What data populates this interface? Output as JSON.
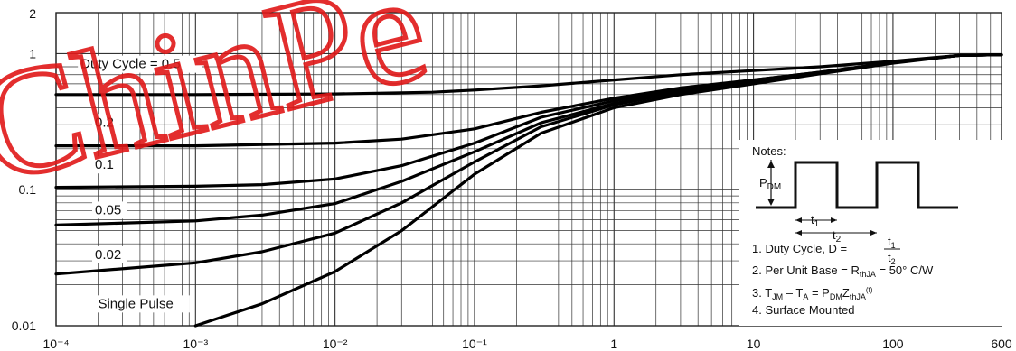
{
  "chart_data": {
    "type": "line",
    "scale": {
      "x": "log",
      "y": "log"
    },
    "xlim": [
      0.0001,
      600
    ],
    "ylim": [
      0.01,
      2
    ],
    "grid": true,
    "x_tick_labels": [
      "10⁻⁴",
      "10⁻³",
      "10⁻²",
      "10⁻¹",
      "1",
      "10",
      "100",
      "600"
    ],
    "x_tick_values": [
      0.0001,
      0.001,
      0.01,
      0.1,
      1,
      10,
      100,
      600
    ],
    "y_tick_labels": [
      "2",
      "1",
      "0.1",
      "0.01"
    ],
    "y_tick_values": [
      2,
      1,
      0.1,
      0.01
    ],
    "series": [
      {
        "name": "Duty Cycle = 0.5",
        "x": [
          0.0001,
          0.001,
          0.01,
          0.05,
          0.1,
          0.3,
          1,
          3,
          10,
          30,
          100,
          300,
          600
        ],
        "y": [
          0.5,
          0.5,
          0.505,
          0.52,
          0.54,
          0.58,
          0.64,
          0.7,
          0.75,
          0.8,
          0.88,
          0.97,
          0.98
        ]
      },
      {
        "name": "0.2",
        "x": [
          0.0001,
          0.001,
          0.01,
          0.03,
          0.1,
          0.3,
          1,
          3,
          10,
          30,
          100,
          300,
          600
        ],
        "y": [
          0.21,
          0.21,
          0.22,
          0.235,
          0.28,
          0.37,
          0.47,
          0.56,
          0.64,
          0.73,
          0.86,
          0.97,
          0.98
        ]
      },
      {
        "name": "0.1",
        "x": [
          0.0001,
          0.001,
          0.003,
          0.01,
          0.03,
          0.1,
          0.3,
          1,
          3,
          10,
          30,
          100,
          300,
          600
        ],
        "y": [
          0.104,
          0.106,
          0.109,
          0.12,
          0.15,
          0.22,
          0.34,
          0.45,
          0.55,
          0.64,
          0.73,
          0.86,
          0.97,
          0.98
        ]
      },
      {
        "name": "0.05",
        "x": [
          0.0001,
          0.001,
          0.003,
          0.01,
          0.03,
          0.1,
          0.3,
          1,
          3,
          10,
          30,
          100,
          300,
          600
        ],
        "y": [
          0.055,
          0.059,
          0.065,
          0.079,
          0.115,
          0.19,
          0.31,
          0.43,
          0.53,
          0.63,
          0.72,
          0.86,
          0.97,
          0.98
        ]
      },
      {
        "name": "0.02",
        "x": [
          0.0001,
          0.001,
          0.003,
          0.01,
          0.03,
          0.1,
          0.3,
          1,
          3,
          10,
          30,
          100,
          300,
          600
        ],
        "y": [
          0.024,
          0.029,
          0.035,
          0.048,
          0.08,
          0.16,
          0.29,
          0.42,
          0.52,
          0.62,
          0.72,
          0.86,
          0.97,
          0.98
        ]
      },
      {
        "name": "Single Pulse",
        "x": [
          0.001,
          0.003,
          0.01,
          0.03,
          0.1,
          0.3,
          1,
          3,
          10,
          30,
          100,
          300,
          600
        ],
        "y": [
          0.01,
          0.0145,
          0.025,
          0.05,
          0.13,
          0.26,
          0.4,
          0.5,
          0.6,
          0.71,
          0.85,
          0.97,
          0.98
        ]
      }
    ],
    "series_labels": [
      {
        "text": "Duty Cycle = 0.5",
        "x": 0.00015,
        "y": 0.78
      },
      {
        "text": "0.2",
        "x": 0.00019,
        "y": 0.29
      },
      {
        "text": "0.1",
        "x": 0.00019,
        "y": 0.142
      },
      {
        "text": "0.05",
        "x": 0.00019,
        "y": 0.066
      },
      {
        "text": "0.02",
        "x": 0.00019,
        "y": 0.031
      },
      {
        "text": "Single Pulse",
        "x": 0.0002,
        "y": 0.0135
      }
    ],
    "notes": {
      "title": "Notes:",
      "pdm_label": "P",
      "pdm_sub": "DM",
      "t1_label": "t",
      "t1_sub": "1",
      "t2_label": "t",
      "t2_sub": "2",
      "items": [
        "1. Duty Cycle, D = ",
        "2. Per Unit Base = R",
        "3. T",
        "4. Surface Mounted"
      ],
      "item2_sub": "thJA",
      "item2_tail": " = 50° C/W",
      "item3_parts": [
        "JM",
        " – T",
        "A",
        " = P",
        "DM",
        "Z",
        "thJA",
        "(t)"
      ],
      "frac_num": "t",
      "frac_num_sub": "1",
      "frac_den": "t",
      "frac_den_sub": "2"
    }
  },
  "watermark": {
    "text": "ChinPe",
    "color": "#e01818"
  }
}
